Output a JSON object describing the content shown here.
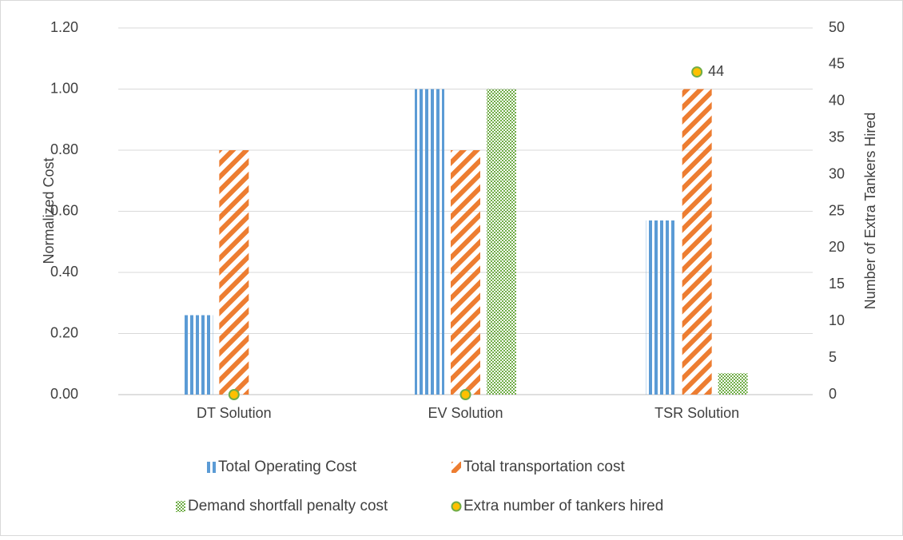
{
  "chart_data": {
    "type": "bar",
    "categories": [
      "DT Solution",
      "EV Solution",
      "TSR Solution"
    ],
    "series": [
      {
        "name": "Total Operating Cost",
        "color": "#5b9bd5",
        "pattern": "vertical",
        "values": [
          0.26,
          1.0,
          0.57
        ]
      },
      {
        "name": "Total transportation cost",
        "color": "#ed7d31",
        "pattern": "diagonal",
        "values": [
          0.8,
          0.8,
          1.0
        ]
      },
      {
        "name": "Demand shortfall penalty cost",
        "color": "#70ad47",
        "pattern": "checker",
        "values": [
          0,
          1.0,
          0.07
        ]
      },
      {
        "name": "Extra number of tankers hired",
        "color": "#ffc000",
        "edge": "#70ad47",
        "type": "scatter",
        "axis": "y2",
        "values": [
          0,
          0,
          44
        ],
        "labeled": [
          false,
          false,
          true
        ]
      }
    ],
    "ylabel": "Normalized Cost",
    "y2label": "Number of Extra Tankers Hired",
    "ylim": [
      0,
      1.2
    ],
    "yticks": [
      {
        "value": 0,
        "label": "0.00"
      },
      {
        "value": 0.2,
        "label": "0.20"
      },
      {
        "value": 0.4,
        "label": "0.40"
      },
      {
        "value": 0.6,
        "label": "0.60"
      },
      {
        "value": 0.8,
        "label": "0.80"
      },
      {
        "value": 1.0,
        "label": "1.00"
      },
      {
        "value": 1.2,
        "label": "1.20"
      }
    ],
    "y2lim": [
      0,
      50
    ],
    "y2ticks": [
      0,
      5,
      10,
      15,
      20,
      25,
      30,
      35,
      40,
      45,
      50
    ],
    "grid": true,
    "legend": "bottom"
  }
}
